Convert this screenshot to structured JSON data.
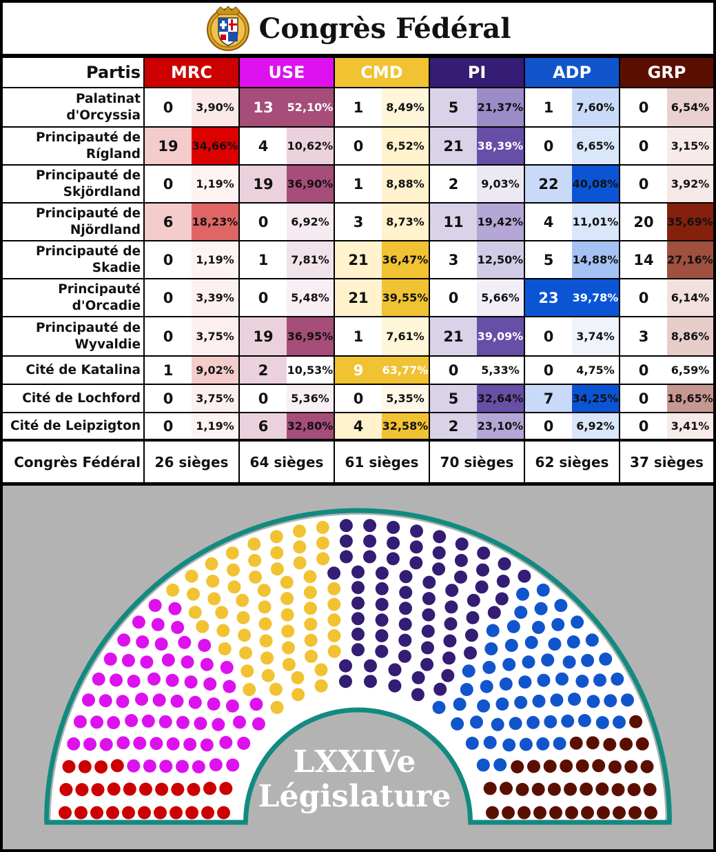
{
  "header": {
    "title": "Congrès Fédéral",
    "emblem": "coat-of-arms-emblem"
  },
  "table": {
    "partis_label": "Partis",
    "total_label": "Congrès Fédéral",
    "parties": [
      {
        "id": "mrc",
        "name": "MRC",
        "color": "#cc0000",
        "total": "26 sièges"
      },
      {
        "id": "use",
        "name": "USE",
        "color": "#dd11ee",
        "total": "64 sièges"
      },
      {
        "id": "cmd",
        "name": "CMD",
        "color": "#f1c232",
        "total": "61 sièges"
      },
      {
        "id": "pi",
        "name": "PI",
        "color": "#351c75",
        "total": "70 sièges"
      },
      {
        "id": "adp",
        "name": "ADP",
        "color": "#1155cc",
        "total": "62 sièges"
      },
      {
        "id": "grp",
        "name": "GRP",
        "color": "#5b0f00",
        "total": "37 sièges"
      }
    ],
    "rows": [
      {
        "region": "Palatinat d'Orcyssia",
        "seats": [
          "0",
          "13",
          "1",
          "5",
          "1",
          "0"
        ],
        "pcts": [
          "3,90%",
          "52,10%",
          "8,49%",
          "21,37%",
          "7,60%",
          "6,54%"
        ],
        "seat_bg": [
          "#ffffff",
          "#a64d79",
          "#ffffff",
          "#d9d2e9",
          "#ffffff",
          "#ffffff"
        ],
        "pct_bg": [
          "#fbe9e9",
          "#a64d79",
          "#fff5d9",
          "#9b8cc8",
          "#c9daf8",
          "#ead1cf"
        ],
        "light_seat": [
          false,
          true,
          false,
          false,
          false,
          false
        ],
        "light_pct": [
          false,
          true,
          false,
          false,
          false,
          false
        ]
      },
      {
        "region": "Principauté de Rígland",
        "seats": [
          "19",
          "4",
          "0",
          "21",
          "0",
          "0"
        ],
        "pcts": [
          "34,66%",
          "10,62%",
          "6,52%",
          "38,39%",
          "6,65%",
          "3,15%"
        ],
        "seat_bg": [
          "#f4cccc",
          "#ffffff",
          "#ffffff",
          "#d9d2e9",
          "#ffffff",
          "#ffffff"
        ],
        "pct_bg": [
          "#dd0000",
          "#ead1dc",
          "#fff2cc",
          "#674ea7",
          "#dae6f9",
          "#f7ebea"
        ],
        "light_seat": [
          false,
          false,
          false,
          false,
          false,
          false
        ],
        "light_pct": [
          false,
          false,
          false,
          true,
          false,
          false
        ]
      },
      {
        "region": "Principauté de Skjördland",
        "seats": [
          "0",
          "19",
          "1",
          "2",
          "22",
          "0"
        ],
        "pcts": [
          "1,19%",
          "36,90%",
          "8,88%",
          "9,03%",
          "40,08%",
          "3,92%"
        ],
        "seat_bg": [
          "#ffffff",
          "#ead1dc",
          "#ffffff",
          "#ffffff",
          "#c9daf8",
          "#ffffff"
        ],
        "pct_bg": [
          "#fdf3f3",
          "#a64d79",
          "#fff2cc",
          "#ede9f4",
          "#0b55d5",
          "#f5e8e6"
        ],
        "light_seat": [
          false,
          false,
          false,
          false,
          false,
          false
        ],
        "light_pct": [
          false,
          false,
          false,
          false,
          false,
          false
        ]
      },
      {
        "region": "Principauté de Njördland",
        "seats": [
          "6",
          "0",
          "3",
          "11",
          "4",
          "20"
        ],
        "pcts": [
          "18,23%",
          "6,92%",
          "8,73%",
          "19,42%",
          "11,01%",
          "35,69%"
        ],
        "seat_bg": [
          "#f4cccc",
          "#ffffff",
          "#ffffff",
          "#d9d2e9",
          "#ffffff",
          "#ffffff"
        ],
        "pct_bg": [
          "#e06666",
          "#f6ebf1",
          "#fff2cc",
          "#b4a7d6",
          "#dae6f9",
          "#85200c"
        ],
        "light_seat": [
          false,
          false,
          false,
          false,
          false,
          false
        ],
        "light_pct": [
          false,
          false,
          false,
          false,
          false,
          false
        ]
      },
      {
        "region": "Principauté de Skadie",
        "seats": [
          "0",
          "1",
          "21",
          "3",
          "5",
          "14"
        ],
        "pcts": [
          "1,19%",
          "7,81%",
          "36,47%",
          "12,50%",
          "14,88%",
          "27,16%"
        ],
        "seat_bg": [
          "#ffffff",
          "#ffffff",
          "#fff2cc",
          "#ffffff",
          "#ffffff",
          "#ffffff"
        ],
        "pct_bg": [
          "#fdf3f3",
          "#f1e3ea",
          "#f1c232",
          "#d2cbe6",
          "#a4c2f4",
          "#a0503f"
        ],
        "light_seat": [
          false,
          false,
          false,
          false,
          false,
          false
        ],
        "light_pct": [
          false,
          false,
          false,
          false,
          false,
          false
        ]
      },
      {
        "region": "Principauté d'Orcadie",
        "seats": [
          "0",
          "0",
          "21",
          "0",
          "23",
          "0"
        ],
        "pcts": [
          "3,39%",
          "5,48%",
          "39,55%",
          "5,66%",
          "39,78%",
          "6,14%"
        ],
        "seat_bg": [
          "#ffffff",
          "#ffffff",
          "#fff2cc",
          "#ffffff",
          "#0b55d5",
          "#ffffff"
        ],
        "pct_bg": [
          "#fdf0f0",
          "#f8eff4",
          "#f1c232",
          "#f1eef7",
          "#0b55d5",
          "#f1e0de"
        ],
        "light_seat": [
          false,
          false,
          false,
          false,
          true,
          false
        ],
        "light_pct": [
          false,
          false,
          false,
          false,
          true,
          false
        ]
      },
      {
        "region": "Principauté de Wyvaldie",
        "seats": [
          "0",
          "19",
          "1",
          "21",
          "0",
          "3"
        ],
        "pcts": [
          "3,75%",
          "36,95%",
          "7,61%",
          "39,09%",
          "3,74%",
          "8,86%"
        ],
        "seat_bg": [
          "#ffffff",
          "#ead1dc",
          "#ffffff",
          "#d9d2e9",
          "#ffffff",
          "#ffffff"
        ],
        "pct_bg": [
          "#fcefef",
          "#a64d79",
          "#fff5d9",
          "#674ea7",
          "#eef3fc",
          "#e6cdc8"
        ],
        "light_seat": [
          false,
          false,
          false,
          false,
          false,
          false
        ],
        "light_pct": [
          false,
          false,
          false,
          true,
          false,
          false
        ]
      },
      {
        "region": "Cité de Katalina",
        "seats": [
          "1",
          "2",
          "9",
          "0",
          "0",
          "0"
        ],
        "pcts": [
          "9,02%",
          "10,53%",
          "63,77%",
          "5,33%",
          "4,75%",
          "6,59%"
        ],
        "seat_bg": [
          "#ffffff",
          "#ead1dc",
          "#f1c232",
          "#ffffff",
          "#ffffff",
          "#ffffff"
        ],
        "pct_bg": [
          "#f4cccc",
          "#ffffff",
          "#f1c232",
          "#ffffff",
          "#ffffff",
          "#ffffff"
        ],
        "light_seat": [
          false,
          false,
          true,
          false,
          false,
          false
        ],
        "light_pct": [
          false,
          false,
          true,
          false,
          false,
          false
        ]
      },
      {
        "region": "Cité de Lochford",
        "seats": [
          "0",
          "0",
          "0",
          "5",
          "7",
          "0"
        ],
        "pcts": [
          "3,75%",
          "5,36%",
          "5,35%",
          "32,64%",
          "34,25%",
          "18,65%"
        ],
        "seat_bg": [
          "#ffffff",
          "#ffffff",
          "#ffffff",
          "#d9d2e9",
          "#c9daf8",
          "#ffffff"
        ],
        "pct_bg": [
          "#fcefef",
          "#f8eff4",
          "#fff8e6",
          "#674ea7",
          "#0b55d5",
          "#c79891"
        ],
        "light_seat": [
          false,
          false,
          false,
          false,
          false,
          false
        ],
        "light_pct": [
          false,
          false,
          false,
          false,
          false,
          false
        ]
      },
      {
        "region": "Cité de Leipzigton",
        "seats": [
          "0",
          "6",
          "4",
          "2",
          "0",
          "0"
        ],
        "pcts": [
          "1,19%",
          "32,80%",
          "32,58%",
          "23,10%",
          "6,92%",
          "3,41%"
        ],
        "seat_bg": [
          "#ffffff",
          "#ead1dc",
          "#fff2cc",
          "#d9d2e9",
          "#ffffff",
          "#ffffff"
        ],
        "pct_bg": [
          "#fdf3f3",
          "#a64d79",
          "#f1c232",
          "#b4a7d6",
          "#dae6f9",
          "#f7ebea"
        ],
        "light_seat": [
          false,
          false,
          false,
          false,
          false,
          false
        ],
        "light_pct": [
          false,
          false,
          false,
          false,
          false,
          false
        ]
      }
    ]
  },
  "hemicycle": {
    "label_line1": "LXXIVe",
    "label_line2": "Législature",
    "background": "#b3b3b3",
    "ring_color": "#138a80"
  },
  "chart_data": {
    "type": "table",
    "title": "Congrès Fédéral",
    "columns": [
      "MRC",
      "USE",
      "CMD",
      "PI",
      "ADP",
      "GRP"
    ],
    "seat_totals": [
      26,
      64,
      61,
      70,
      62,
      37
    ],
    "legislature": "LXXIVe Législature"
  }
}
